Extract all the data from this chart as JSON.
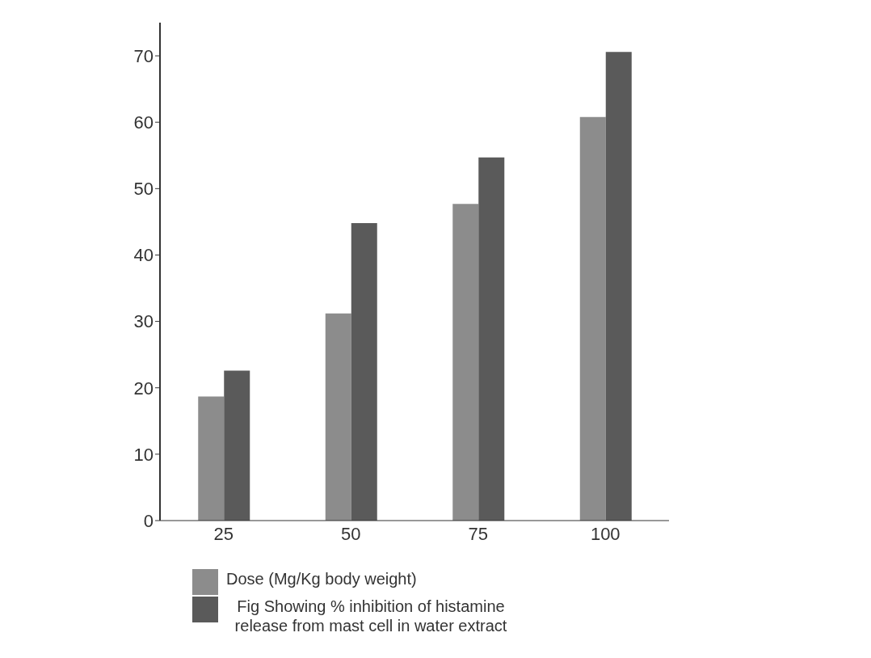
{
  "chart_data": {
    "type": "bar",
    "categories": [
      "25",
      "50",
      "75",
      "100"
    ],
    "series": [
      {
        "name": "Dose (Mg/Kg body weight)",
        "color": "#8c8c8c",
        "values": [
          18.7,
          31.2,
          47.7,
          60.8
        ]
      },
      {
        "name": "Fig Showing % inhibition of histamine release from mast cell in water extract",
        "color": "#5a5a5a",
        "values": [
          22.6,
          44.8,
          54.7,
          70.6
        ]
      }
    ],
    "ylim": [
      0,
      75
    ],
    "yticks": [
      0,
      10,
      20,
      30,
      40,
      50,
      60,
      70
    ],
    "grid": false,
    "legend": "bottom"
  }
}
